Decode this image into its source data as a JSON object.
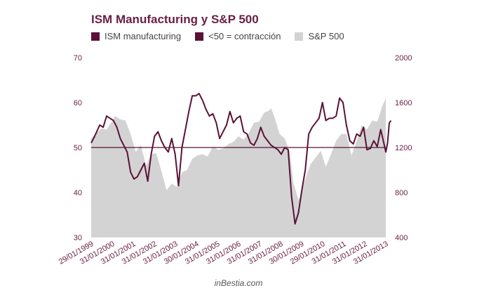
{
  "colors": {
    "ism_line": "#5a1236",
    "threshold_line": "#5a1236",
    "sp500_area": "#d3d3d3",
    "title": "#6b1e45",
    "axis_tick_text": "#6b1e45"
  },
  "footer": {
    "credit": "inBestia.com"
  },
  "chart_data": {
    "type": "line",
    "title": "ISM Manufacturing y S&P 500",
    "grid": false,
    "legend_position": "top-left",
    "y_left": {
      "ticks": [
        30,
        40,
        50,
        60,
        70
      ],
      "range": [
        30,
        70
      ]
    },
    "y_right": {
      "ticks": [
        400,
        800,
        1200,
        1600,
        2000
      ],
      "range": [
        400,
        2000
      ]
    },
    "x_ticks": [
      "29/01/1999",
      "31/01/2000",
      "31/01/2001",
      "31/01/2002",
      "31/01/2003",
      "30/01/2004",
      "31/01/2005",
      "31/01/2006",
      "31/01/2007",
      "31/01/2008",
      "30/01/2009",
      "29/01/2010",
      "31/01/2011",
      "31/01/2012",
      "31/01/2013"
    ],
    "x_range": [
      "1999-01",
      "2013-05"
    ],
    "threshold": {
      "value": 50,
      "axis": "left"
    },
    "series": [
      {
        "name": "ISM manufacturing",
        "axis": "left",
        "kind": "line",
        "points": [
          [
            "1999-01",
            51.0
          ],
          [
            "1999-03",
            52.5
          ],
          [
            "1999-06",
            55.0
          ],
          [
            "1999-08",
            54.5
          ],
          [
            "1999-10",
            57.0
          ],
          [
            "1999-12",
            56.5
          ],
          [
            "2000-02",
            56.0
          ],
          [
            "2000-04",
            54.5
          ],
          [
            "2000-06",
            52.0
          ],
          [
            "2000-08",
            50.5
          ],
          [
            "2000-10",
            49.0
          ],
          [
            "2000-12",
            44.5
          ],
          [
            "2001-02",
            43.0
          ],
          [
            "2001-04",
            43.5
          ],
          [
            "2001-06",
            45.0
          ],
          [
            "2001-08",
            46.5
          ],
          [
            "2001-10",
            42.5
          ],
          [
            "2001-12",
            48.5
          ],
          [
            "2002-02",
            52.5
          ],
          [
            "2002-04",
            53.5
          ],
          [
            "2002-06",
            51.5
          ],
          [
            "2002-08",
            50.0
          ],
          [
            "2002-10",
            49.0
          ],
          [
            "2002-12",
            52.0
          ],
          [
            "2003-02",
            48.5
          ],
          [
            "2003-04",
            41.5
          ],
          [
            "2003-06",
            50.0
          ],
          [
            "2003-08",
            54.0
          ],
          [
            "2003-10",
            58.0
          ],
          [
            "2003-12",
            61.5
          ],
          [
            "2004-02",
            61.5
          ],
          [
            "2004-04",
            62.0
          ],
          [
            "2004-06",
            60.5
          ],
          [
            "2004-08",
            58.5
          ],
          [
            "2004-10",
            57.0
          ],
          [
            "2004-12",
            57.5
          ],
          [
            "2005-02",
            55.5
          ],
          [
            "2005-04",
            52.0
          ],
          [
            "2005-06",
            53.5
          ],
          [
            "2005-08",
            55.0
          ],
          [
            "2005-10",
            58.0
          ],
          [
            "2005-12",
            55.5
          ],
          [
            "2006-02",
            56.5
          ],
          [
            "2006-04",
            57.0
          ],
          [
            "2006-06",
            53.5
          ],
          [
            "2006-08",
            53.0
          ],
          [
            "2006-10",
            51.0
          ],
          [
            "2006-12",
            50.5
          ],
          [
            "2007-02",
            52.0
          ],
          [
            "2007-04",
            54.5
          ],
          [
            "2007-06",
            52.5
          ],
          [
            "2007-08",
            51.5
          ],
          [
            "2007-10",
            50.5
          ],
          [
            "2007-12",
            50.0
          ],
          [
            "2008-02",
            49.5
          ],
          [
            "2008-04",
            48.5
          ],
          [
            "2008-06",
            50.0
          ],
          [
            "2008-08",
            49.5
          ],
          [
            "2008-10",
            39.0
          ],
          [
            "2008-12",
            33.0
          ],
          [
            "2009-02",
            35.5
          ],
          [
            "2009-04",
            40.5
          ],
          [
            "2009-06",
            45.0
          ],
          [
            "2009-08",
            53.0
          ],
          [
            "2009-10",
            54.5
          ],
          [
            "2009-12",
            55.5
          ],
          [
            "2010-02",
            56.5
          ],
          [
            "2010-04",
            60.0
          ],
          [
            "2010-06",
            56.0
          ],
          [
            "2010-08",
            56.5
          ],
          [
            "2010-10",
            56.5
          ],
          [
            "2010-12",
            57.0
          ],
          [
            "2011-02",
            61.0
          ],
          [
            "2011-04",
            60.0
          ],
          [
            "2011-06",
            55.0
          ],
          [
            "2011-08",
            51.5
          ],
          [
            "2011-10",
            50.8
          ],
          [
            "2011-12",
            53.0
          ],
          [
            "2012-02",
            52.5
          ],
          [
            "2012-04",
            54.5
          ],
          [
            "2012-06",
            49.5
          ],
          [
            "2012-08",
            49.8
          ],
          [
            "2012-10",
            51.5
          ],
          [
            "2012-12",
            50.2
          ],
          [
            "2013-02",
            54.0
          ],
          [
            "2013-04",
            50.7
          ],
          [
            "2013-05",
            49.0
          ],
          [
            "2013-06",
            50.9
          ],
          [
            "2013-07",
            55.4
          ],
          [
            "2013-08",
            56.0
          ]
        ]
      },
      {
        "name": "<50 = contracción",
        "axis": "left",
        "kind": "reference",
        "points": [
          [
            "1999-01",
            50
          ],
          [
            "2013-08",
            50
          ]
        ]
      },
      {
        "name": "S&P 500",
        "axis": "right",
        "kind": "area",
        "points": [
          [
            "1999-01",
            1280
          ],
          [
            "1999-04",
            1330
          ],
          [
            "1999-07",
            1370
          ],
          [
            "1999-10",
            1360
          ],
          [
            "2000-01",
            1430
          ],
          [
            "2000-03",
            1480
          ],
          [
            "2000-06",
            1450
          ],
          [
            "2000-09",
            1440
          ],
          [
            "2000-12",
            1320
          ],
          [
            "2001-03",
            1160
          ],
          [
            "2001-06",
            1220
          ],
          [
            "2001-09",
            1040
          ],
          [
            "2001-12",
            1140
          ],
          [
            "2002-03",
            1150
          ],
          [
            "2002-06",
            990
          ],
          [
            "2002-09",
            820
          ],
          [
            "2002-12",
            880
          ],
          [
            "2003-03",
            850
          ],
          [
            "2003-06",
            980
          ],
          [
            "2003-09",
            1000
          ],
          [
            "2003-12",
            1100
          ],
          [
            "2004-03",
            1130
          ],
          [
            "2004-06",
            1140
          ],
          [
            "2004-09",
            1120
          ],
          [
            "2004-12",
            1210
          ],
          [
            "2005-03",
            1180
          ],
          [
            "2005-06",
            1190
          ],
          [
            "2005-09",
            1230
          ],
          [
            "2005-12",
            1250
          ],
          [
            "2006-03",
            1300
          ],
          [
            "2006-06",
            1270
          ],
          [
            "2006-09",
            1330
          ],
          [
            "2006-12",
            1420
          ],
          [
            "2007-03",
            1430
          ],
          [
            "2007-06",
            1510
          ],
          [
            "2007-09",
            1530
          ],
          [
            "2007-10",
            1550
          ],
          [
            "2007-12",
            1470
          ],
          [
            "2008-03",
            1320
          ],
          [
            "2008-06",
            1280
          ],
          [
            "2008-09",
            1160
          ],
          [
            "2008-11",
            890
          ],
          [
            "2009-02",
            735
          ],
          [
            "2009-03",
            760
          ],
          [
            "2009-06",
            920
          ],
          [
            "2009-09",
            1050
          ],
          [
            "2009-12",
            1110
          ],
          [
            "2010-03",
            1170
          ],
          [
            "2010-06",
            1030
          ],
          [
            "2010-09",
            1140
          ],
          [
            "2010-12",
            1260
          ],
          [
            "2011-03",
            1320
          ],
          [
            "2011-06",
            1320
          ],
          [
            "2011-09",
            1130
          ],
          [
            "2011-12",
            1260
          ],
          [
            "2012-03",
            1400
          ],
          [
            "2012-06",
            1360
          ],
          [
            "2012-09",
            1440
          ],
          [
            "2012-12",
            1430
          ],
          [
            "2013-03",
            1570
          ],
          [
            "2013-05",
            1640
          ],
          [
            "2013-08",
            1700
          ],
          [
            "2013-09",
            1760
          ]
        ]
      }
    ]
  }
}
